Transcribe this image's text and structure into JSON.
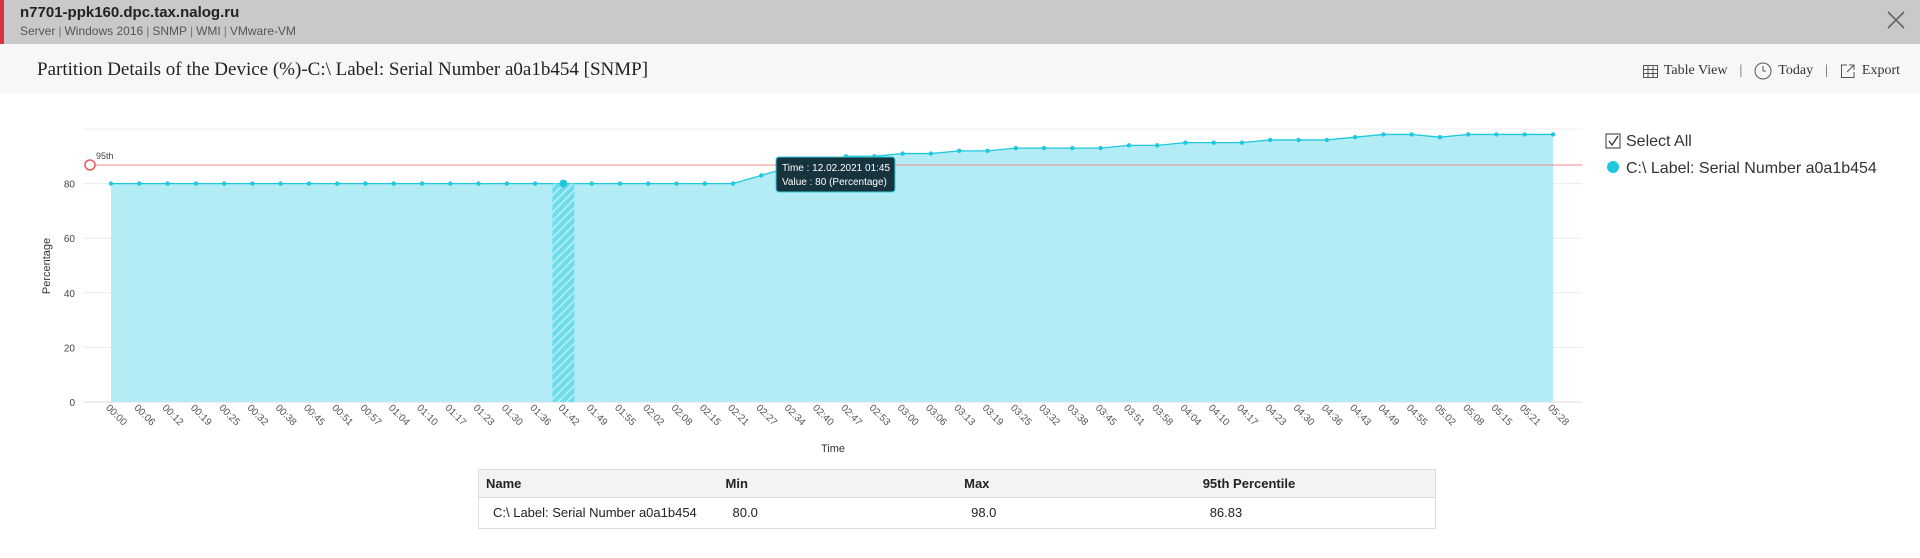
{
  "header": {
    "title": "n7701-ppk160.dpc.tax.nalog.ru",
    "tags": [
      "Server",
      "Windows 2016",
      "SNMP",
      "WMI",
      "VMware-VM"
    ]
  },
  "toolbar": [
    "Table View",
    "Today",
    "Export"
  ],
  "chart_data": {
    "type": "area",
    "title": "Partition Details of the Device (%)-C:\\ Label: Serial Number a0a1b454 [SNMP]",
    "ylabel": "Percentage",
    "xlabel": "Time",
    "categories": [
      "00:00",
      "00:06",
      "00:12",
      "00:19",
      "00:25",
      "00:32",
      "00:38",
      "00:45",
      "00:51",
      "00:57",
      "01:04",
      "01:10",
      "01:17",
      "01:23",
      "01:30",
      "01:36",
      "01:42",
      "01:49",
      "01:55",
      "02:02",
      "02:08",
      "02:15",
      "02:21",
      "02:27",
      "02:34",
      "02:40",
      "02:47",
      "02:53",
      "03:00",
      "03:06",
      "03:13",
      "03:19",
      "03:25",
      "03:32",
      "03:38",
      "03:45",
      "03:51",
      "03:58",
      "04:04",
      "04:10",
      "04:17",
      "04:23",
      "04:30",
      "04:36",
      "04:43",
      "04:49",
      "04:55",
      "05:02",
      "05:08",
      "05:15",
      "05:21",
      "05:28"
    ],
    "series": [
      {
        "name": "C:\\ Label: Serial Number a0a1b454",
        "color": "#1fc8dd",
        "values": [
          80,
          80,
          80,
          80,
          80,
          80,
          80,
          80,
          80,
          80,
          80,
          80,
          80,
          80,
          80,
          80,
          80,
          80,
          80,
          80,
          80,
          80,
          80,
          83,
          86,
          88,
          90,
          90,
          91,
          91,
          92,
          92,
          93,
          93,
          93,
          93,
          94,
          94,
          95,
          95,
          95,
          96,
          96,
          96,
          97,
          98,
          98,
          97,
          98,
          98,
          98,
          98
        ]
      }
    ],
    "ylim": [
      0,
      100
    ],
    "yticks": [
      0,
      20,
      40,
      60,
      80
    ],
    "grid": true,
    "reference_line": {
      "label": "95th",
      "value": 86.83,
      "color": "#f08a8a"
    },
    "tooltip": [
      "Time : 12.02.2021 01:45",
      "Value : 80 (Percentage)"
    ],
    "legend_select_all": "Select All"
  },
  "table": {
    "columns": [
      "Name",
      "Min",
      "Max",
      "95th Percentile"
    ],
    "rows": [
      [
        "C:\\ Label: Serial Number a0a1b454",
        "80.0",
        "98.0",
        "86.83"
      ]
    ]
  }
}
